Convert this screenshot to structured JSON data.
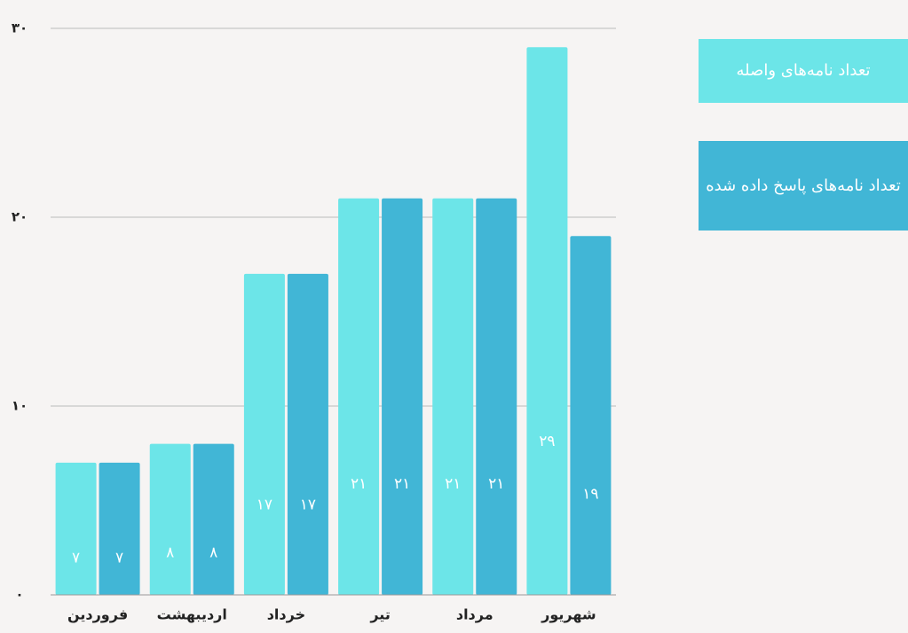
{
  "chart_data": {
    "type": "bar",
    "categories": [
      "فروردین",
      "اردیبهشت",
      "خرداد",
      "تیر",
      "مرداد",
      "شهریور"
    ],
    "series": [
      {
        "name": "تعداد نامه‌های واصله",
        "color": "#6ce5e8",
        "values": [
          7,
          8,
          17,
          21,
          21,
          29
        ],
        "value_labels": [
          "۷",
          "۸",
          "۱۷",
          "۲۱",
          "۲۱",
          "۲۹"
        ]
      },
      {
        "name": "تعداد نامه‌های پاسخ داده شده",
        "color": "#41b6d6",
        "values": [
          7,
          8,
          17,
          21,
          21,
          19
        ],
        "value_labels": [
          "۷",
          "۸",
          "۱۷",
          "۲۱",
          "۲۱",
          "۱۹"
        ]
      }
    ],
    "ylim": [
      0,
      30
    ],
    "yticks": [
      {
        "value": 0,
        "label": "۰"
      },
      {
        "value": 10,
        "label": "۱۰"
      },
      {
        "value": 20,
        "label": "۲۰"
      },
      {
        "value": 30,
        "label": "۳۰"
      }
    ],
    "grid": true,
    "legend": "right"
  }
}
